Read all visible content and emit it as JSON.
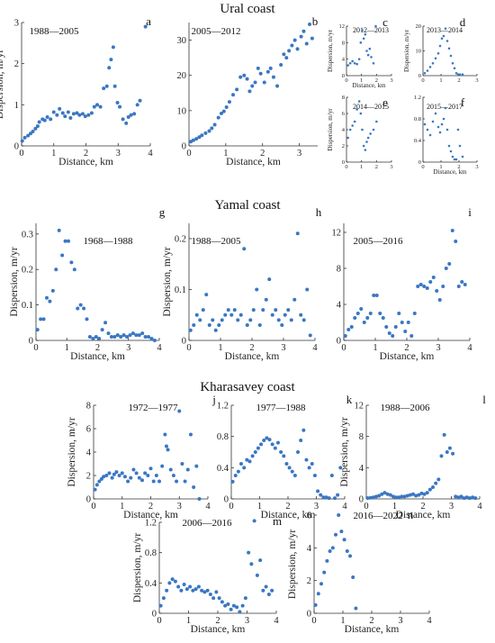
{
  "section_titles": [
    "Ural coast",
    "Yamal coast",
    "Kharasavey coast"
  ],
  "chart_data": [
    {
      "id": "a",
      "letter": "a",
      "period": "1988—2005",
      "type": "scatter",
      "xlabel": "Distance, km",
      "ylabel": "Dispersion, m/yr",
      "xlim": [
        0,
        4
      ],
      "ylim": [
        0,
        3
      ],
      "xticks": [
        0,
        1,
        2,
        3,
        4
      ],
      "yticks": [
        0,
        1,
        2,
        3
      ],
      "x": [
        0.02,
        0.1,
        0.2,
        0.28,
        0.35,
        0.43,
        0.5,
        0.55,
        0.65,
        0.72,
        0.8,
        0.9,
        1.0,
        1.1,
        1.18,
        1.28,
        1.35,
        1.45,
        1.52,
        1.62,
        1.72,
        1.8,
        1.9,
        1.98,
        2.08,
        2.18,
        2.26,
        2.35,
        2.45,
        2.55,
        2.65,
        2.72,
        2.78,
        2.85,
        2.9,
        2.98,
        3.05,
        3.15,
        3.25,
        3.32,
        3.4,
        3.5,
        3.6,
        3.68,
        3.85
      ],
      "y": [
        0.12,
        0.2,
        0.25,
        0.3,
        0.35,
        0.42,
        0.48,
        0.58,
        0.65,
        0.62,
        0.7,
        0.65,
        0.82,
        0.75,
        0.9,
        0.8,
        0.72,
        0.82,
        0.68,
        0.78,
        0.8,
        0.75,
        0.78,
        0.72,
        0.75,
        0.8,
        0.95,
        1.0,
        0.95,
        1.4,
        1.45,
        1.9,
        2.1,
        2.4,
        1.45,
        1.05,
        0.95,
        0.65,
        0.55,
        0.7,
        0.75,
        0.78,
        1.0,
        1.1,
        2.9
      ]
    },
    {
      "id": "b",
      "letter": "b",
      "period": "2005—2012",
      "type": "scatter",
      "xlabel": "Distance, km",
      "ylabel": "",
      "xlim": [
        0,
        3.5
      ],
      "ylim": [
        0,
        35
      ],
      "xticks": [
        0,
        1,
        2,
        3
      ],
      "yticks": [
        0,
        10,
        20,
        30
      ],
      "x": [
        0.05,
        0.12,
        0.2,
        0.28,
        0.35,
        0.45,
        0.55,
        0.62,
        0.7,
        0.8,
        0.88,
        0.95,
        1.02,
        1.1,
        1.2,
        1.3,
        1.4,
        1.5,
        1.58,
        1.65,
        1.72,
        1.8,
        1.88,
        1.95,
        2.05,
        2.15,
        2.22,
        2.3,
        2.4,
        2.5,
        2.58,
        2.65,
        2.72,
        2.8,
        2.88,
        2.95,
        3.05,
        3.12,
        3.2,
        3.28,
        3.35
      ],
      "y": [
        1.2,
        1.6,
        2.0,
        2.5,
        3.0,
        3.6,
        4.2,
        5.0,
        6.0,
        8.0,
        9.2,
        9.8,
        11.0,
        12.5,
        14.5,
        16.0,
        19.5,
        20.0,
        19.0,
        15.5,
        17.0,
        18.0,
        22.0,
        20.5,
        18.0,
        21.0,
        22.0,
        19.5,
        17.0,
        23.0,
        26.0,
        25.0,
        27.0,
        28.5,
        30.0,
        27.5,
        31.0,
        32.5,
        29.0,
        34.5,
        30.5
      ]
    },
    {
      "id": "c",
      "letter": "c",
      "period": "2012—2013",
      "type": "scatter",
      "xlabel": "Distance, km",
      "ylabel": "Dispersion, m/yr",
      "xlim": [
        0,
        3
      ],
      "ylim": [
        0,
        12
      ],
      "xticks": [
        0,
        1,
        2,
        3
      ],
      "yticks": [
        0,
        4,
        8,
        12
      ],
      "x": [
        0.1,
        0.25,
        0.4,
        0.55,
        0.7,
        0.85,
        0.95,
        1.05,
        1.15,
        1.25,
        1.35,
        1.45,
        1.55,
        1.65,
        1.8,
        1.95
      ],
      "y": [
        2.5,
        3,
        3.5,
        3,
        2.8,
        4,
        8,
        11,
        9,
        10,
        6,
        5,
        6.5,
        4.5,
        3,
        12
      ]
    },
    {
      "id": "d",
      "letter": "d",
      "period": "2013—2014",
      "type": "scatter",
      "xlabel": "",
      "ylabel": "Dispersion, m/yr",
      "xlim": [
        0,
        3
      ],
      "ylim": [
        0,
        20
      ],
      "xticks": [
        0,
        1,
        2,
        3
      ],
      "yticks": [
        0,
        10,
        20
      ],
      "x": [
        0.1,
        0.25,
        0.4,
        0.55,
        0.7,
        0.85,
        0.95,
        1.05,
        1.15,
        1.25,
        1.35,
        1.45,
        1.55,
        1.65,
        1.75,
        1.85,
        1.95,
        2.05,
        2.2
      ],
      "y": [
        1,
        2,
        3.5,
        5,
        7,
        9,
        12,
        15,
        16,
        19,
        14,
        11,
        8,
        5,
        3,
        1,
        0.5,
        0.5,
        0.5
      ]
    },
    {
      "id": "e",
      "letter": "e",
      "period": "2014—2015",
      "type": "scatter",
      "xlabel": "",
      "ylabel": "Dispersion, m/yr",
      "xlim": [
        0,
        3
      ],
      "ylim": [
        0,
        8
      ],
      "xticks": [
        0,
        1,
        2,
        3
      ],
      "yticks": [
        0,
        2,
        4,
        6,
        8
      ],
      "x": [
        0.1,
        0.25,
        0.4,
        0.55,
        0.7,
        0.85,
        0.95,
        1.05,
        1.15,
        1.25,
        1.35,
        1.45,
        1.6,
        1.8,
        2.0
      ],
      "y": [
        3,
        4,
        4.5,
        5,
        6.5,
        7.5,
        6,
        4,
        2,
        1.5,
        2.5,
        3,
        3.5,
        4,
        5
      ]
    },
    {
      "id": "f",
      "letter": "f",
      "period": "2015—2017",
      "type": "scatter",
      "xlabel": "Distance, km",
      "ylabel": "",
      "xlim": [
        0,
        3
      ],
      "ylim": [
        0,
        1.2
      ],
      "xticks": [
        0,
        1,
        2,
        3
      ],
      "yticks": [
        0,
        0.4,
        0.8,
        1.2
      ],
      "x": [
        0.1,
        0.25,
        0.4,
        0.55,
        0.7,
        0.85,
        0.95,
        1.05,
        1.15,
        1.25,
        1.35,
        1.45,
        1.55,
        1.65,
        1.75,
        1.85,
        1.95,
        2.05,
        2.2
      ],
      "y": [
        0.7,
        0.6,
        0.5,
        0.75,
        0.9,
        0.65,
        0.55,
        0.7,
        0.8,
        1.0,
        0.6,
        0.3,
        0.2,
        0.1,
        0.05,
        0.05,
        0.6,
        0.3,
        0.1
      ]
    },
    {
      "id": "g",
      "letter": "g",
      "period": "1968—1988",
      "type": "scatter",
      "xlabel": "Distance, km",
      "ylabel": "Dispersion, m/yr",
      "xlim": [
        0,
        4
      ],
      "ylim": [
        0,
        0.33
      ],
      "xticks": [
        0,
        1,
        2,
        3,
        4
      ],
      "yticks": [
        0,
        0.1,
        0.2,
        0.3
      ],
      "x": [
        0.05,
        0.15,
        0.25,
        0.35,
        0.45,
        0.55,
        0.65,
        0.75,
        0.85,
        0.95,
        1.05,
        1.15,
        1.25,
        1.35,
        1.45,
        1.55,
        1.65,
        1.75,
        1.85,
        1.95,
        2.05,
        2.15,
        2.25,
        2.35,
        2.45,
        2.55,
        2.65,
        2.75,
        2.85,
        2.95,
        3.05,
        3.15,
        3.25,
        3.35,
        3.45,
        3.55,
        3.65,
        3.75,
        3.85
      ],
      "y": [
        0.03,
        0.06,
        0.06,
        0.12,
        0.11,
        0.14,
        0.2,
        0.31,
        0.24,
        0.28,
        0.28,
        0.22,
        0.2,
        0.09,
        0.1,
        0.09,
        0.06,
        0.01,
        0.005,
        0.01,
        0.005,
        0.03,
        0.05,
        0.02,
        0.01,
        0.01,
        0.015,
        0.01,
        0.015,
        0.01,
        0.015,
        0.02,
        0.015,
        0.015,
        0.02,
        0.01,
        0.01,
        0.005,
        0.0
      ]
    },
    {
      "id": "h",
      "letter": "h",
      "period": "1988—2005",
      "type": "scatter",
      "xlabel": "Distance, km",
      "ylabel": "Dispersion, m/yr",
      "xlim": [
        0,
        4
      ],
      "ylim": [
        0,
        0.23
      ],
      "xticks": [
        0,
        1,
        2,
        3,
        4
      ],
      "yticks": [
        0,
        0.1,
        0.2
      ],
      "x": [
        0.05,
        0.15,
        0.25,
        0.35,
        0.45,
        0.55,
        0.65,
        0.75,
        0.85,
        0.95,
        1.05,
        1.15,
        1.25,
        1.35,
        1.45,
        1.55,
        1.65,
        1.75,
        1.85,
        1.95,
        2.05,
        2.15,
        2.25,
        2.35,
        2.45,
        2.55,
        2.65,
        2.75,
        2.85,
        2.95,
        3.05,
        3.15,
        3.25,
        3.35,
        3.45,
        3.55,
        3.65,
        3.75,
        3.85
      ],
      "y": [
        0.02,
        0.03,
        0.05,
        0.04,
        0.06,
        0.09,
        0.03,
        0.04,
        0.02,
        0.03,
        0.04,
        0.05,
        0.06,
        0.05,
        0.06,
        0.04,
        0.05,
        0.18,
        0.03,
        0.04,
        0.06,
        0.1,
        0.03,
        0.06,
        0.08,
        0.12,
        0.05,
        0.06,
        0.04,
        0.03,
        0.05,
        0.06,
        0.04,
        0.08,
        0.21,
        0.05,
        0.04,
        0.1,
        0.01
      ]
    },
    {
      "id": "i",
      "letter": "i",
      "period": "2005—2016",
      "type": "scatter",
      "xlabel": "Distance, km",
      "ylabel": "",
      "xlim": [
        0,
        4
      ],
      "ylim": [
        0,
        13
      ],
      "xticks": [
        0,
        1,
        2,
        3,
        4
      ],
      "yticks": [
        0,
        4,
        8,
        12
      ],
      "x": [
        0.05,
        0.15,
        0.25,
        0.35,
        0.45,
        0.55,
        0.65,
        0.75,
        0.85,
        0.95,
        1.05,
        1.15,
        1.25,
        1.35,
        1.45,
        1.55,
        1.65,
        1.75,
        1.85,
        1.95,
        2.05,
        2.15,
        2.25,
        2.35,
        2.45,
        2.55,
        2.65,
        2.75,
        2.85,
        2.95,
        3.05,
        3.15,
        3.25,
        3.35,
        3.45,
        3.55,
        3.65,
        3.75,
        3.85
      ],
      "y": [
        0.5,
        1.2,
        1.5,
        2.5,
        3.0,
        3.5,
        2.0,
        2.5,
        3.0,
        5.0,
        5.0,
        3.0,
        2.5,
        1.5,
        0.8,
        0.5,
        1.5,
        3.0,
        2.0,
        1.0,
        2.0,
        0.5,
        3.0,
        6.0,
        6.2,
        6.0,
        5.8,
        6.5,
        7.0,
        5.5,
        4.5,
        6.0,
        8.0,
        8.5,
        12.2,
        11.0,
        6.0,
        6.5,
        6.2
      ]
    },
    {
      "id": "j",
      "letter": "j",
      "period": "1972—1977",
      "type": "scatter",
      "xlabel": "Distance, km",
      "ylabel": "Dispersion, m/yr",
      "xlim": [
        0,
        4
      ],
      "ylim": [
        0,
        8
      ],
      "xticks": [
        0,
        1,
        2,
        3,
        4
      ],
      "yticks": [
        0,
        2,
        4,
        6,
        8
      ],
      "x": [
        0.05,
        0.12,
        0.2,
        0.28,
        0.35,
        0.45,
        0.55,
        0.65,
        0.72,
        0.8,
        0.9,
        1.0,
        1.1,
        1.2,
        1.3,
        1.4,
        1.5,
        1.6,
        1.7,
        1.8,
        1.9,
        2.0,
        2.1,
        2.2,
        2.3,
        2.4,
        2.5,
        2.55,
        2.6,
        2.7,
        2.8,
        2.9,
        3.0,
        3.1,
        3.2,
        3.3,
        3.4,
        3.5,
        3.6,
        3.7
      ],
      "y": [
        0.8,
        1.2,
        1.5,
        1.7,
        1.9,
        2.0,
        2.2,
        1.8,
        2.1,
        2.3,
        2.0,
        2.2,
        1.9,
        1.5,
        1.8,
        2.5,
        2.2,
        1.8,
        1.6,
        2.2,
        2.0,
        2.6,
        1.5,
        2.0,
        1.5,
        2.8,
        5.5,
        4.5,
        4.2,
        2.5,
        2.0,
        1.5,
        7.5,
        3.0,
        1.5,
        2.5,
        5.5,
        1.0,
        2.8,
        0.0
      ]
    },
    {
      "id": "k",
      "letter": "k",
      "period": "1977—1988",
      "type": "scatter",
      "xlabel": "Distance, km",
      "ylabel": "",
      "xlim": [
        0,
        4
      ],
      "ylim": [
        0,
        1.2
      ],
      "xticks": [
        0,
        1,
        2,
        3,
        4
      ],
      "yticks": [
        0,
        0.4,
        0.8,
        1.2
      ],
      "x": [
        0.05,
        0.15,
        0.25,
        0.35,
        0.45,
        0.55,
        0.65,
        0.75,
        0.85,
        0.95,
        1.05,
        1.15,
        1.25,
        1.35,
        1.45,
        1.55,
        1.65,
        1.75,
        1.85,
        1.95,
        2.05,
        2.15,
        2.25,
        2.35,
        2.45,
        2.55,
        2.65,
        2.75,
        2.85,
        2.95,
        3.05,
        3.15,
        3.25,
        3.35,
        3.45,
        3.55,
        3.65,
        3.75,
        3.85
      ],
      "y": [
        0.22,
        0.3,
        0.35,
        0.45,
        0.4,
        0.5,
        0.48,
        0.55,
        0.6,
        0.65,
        0.7,
        0.75,
        0.78,
        0.76,
        0.7,
        0.65,
        0.72,
        0.6,
        0.55,
        0.45,
        0.4,
        0.35,
        0.3,
        0.6,
        0.75,
        0.88,
        0.5,
        0.4,
        0.45,
        0.3,
        0.1,
        0.05,
        0.02,
        0.02,
        0.01,
        0.3,
        0.01,
        0.05,
        0.4
      ]
    },
    {
      "id": "l",
      "letter": "l",
      "period": "1988—2006",
      "type": "scatter",
      "xlabel": "Distance, km",
      "ylabel": "Dispersion, m/yr",
      "xlim": [
        0,
        4
      ],
      "ylim": [
        0,
        12
      ],
      "xticks": [
        0,
        1,
        2,
        3,
        4
      ],
      "yticks": [
        0,
        4,
        8,
        12
      ],
      "x": [
        0.05,
        0.15,
        0.25,
        0.35,
        0.45,
        0.55,
        0.65,
        0.75,
        0.85,
        0.95,
        1.05,
        1.15,
        1.25,
        1.35,
        1.45,
        1.55,
        1.65,
        1.75,
        1.85,
        1.95,
        2.05,
        2.15,
        2.25,
        2.35,
        2.45,
        2.55,
        2.65,
        2.75,
        2.85,
        2.95,
        3.05,
        3.15,
        3.25,
        3.35,
        3.45,
        3.55,
        3.65,
        3.75,
        3.85
      ],
      "y": [
        0.1,
        0.15,
        0.2,
        0.3,
        0.4,
        0.6,
        0.8,
        0.6,
        0.5,
        0.3,
        0.2,
        0.2,
        0.3,
        0.3,
        0.4,
        0.5,
        0.6,
        0.4,
        0.5,
        0.7,
        0.6,
        0.8,
        1.2,
        1.5,
        2.0,
        2.5,
        5.5,
        8.2,
        6.0,
        6.5,
        5.8,
        0.3,
        0.2,
        0.3,
        0.1,
        0.2,
        0.1,
        0.2,
        0.1
      ]
    },
    {
      "id": "m",
      "letter": "m",
      "period": "2006—2016",
      "type": "scatter",
      "xlabel": "Distance, km",
      "ylabel": "Dispersion, m/yr",
      "xlim": [
        0,
        4
      ],
      "ylim": [
        0,
        1.2
      ],
      "xticks": [
        0,
        1,
        2,
        3,
        4
      ],
      "yticks": [
        0,
        0.4,
        0.8,
        1.2
      ],
      "x": [
        0.05,
        0.15,
        0.25,
        0.35,
        0.45,
        0.55,
        0.65,
        0.75,
        0.85,
        0.95,
        1.05,
        1.15,
        1.25,
        1.35,
        1.45,
        1.55,
        1.65,
        1.75,
        1.85,
        1.95,
        2.05,
        2.15,
        2.25,
        2.35,
        2.45,
        2.55,
        2.65,
        2.75,
        2.85,
        2.95,
        3.05,
        3.15,
        3.25,
        3.35,
        3.45,
        3.55,
        3.65,
        3.75,
        3.85
      ],
      "y": [
        0.1,
        0.2,
        0.3,
        0.4,
        0.45,
        0.42,
        0.35,
        0.3,
        0.38,
        0.32,
        0.35,
        0.3,
        0.32,
        0.35,
        0.3,
        0.28,
        0.3,
        0.25,
        0.2,
        0.28,
        0.2,
        0.15,
        0.1,
        0.12,
        0.05,
        0.1,
        0.08,
        0.02,
        0.1,
        0.2,
        0.8,
        0.65,
        1.22,
        0.5,
        0.7,
        0.3,
        0.35,
        0.25,
        0.3
      ]
    },
    {
      "id": "n",
      "letter": "n",
      "period": "2016—2022",
      "type": "scatter",
      "xlabel": "Distance, km",
      "ylabel": "Dispersion, m/yr",
      "xlim": [
        0,
        4
      ],
      "ylim": [
        0,
        6
      ],
      "xticks": [
        0,
        1,
        2,
        3,
        4
      ],
      "yticks": [
        0,
        2,
        4,
        6
      ],
      "x": [
        0.05,
        0.15,
        0.25,
        0.35,
        0.45,
        0.55,
        0.65,
        0.75,
        0.85,
        0.95,
        1.05,
        1.15,
        1.25,
        1.35,
        1.45
      ],
      "y": [
        0.5,
        1.2,
        1.8,
        2.5,
        3.2,
        3.8,
        4.0,
        4.8,
        6.0,
        5.0,
        4.5,
        3.8,
        3.5,
        2.2,
        0.3
      ]
    }
  ]
}
